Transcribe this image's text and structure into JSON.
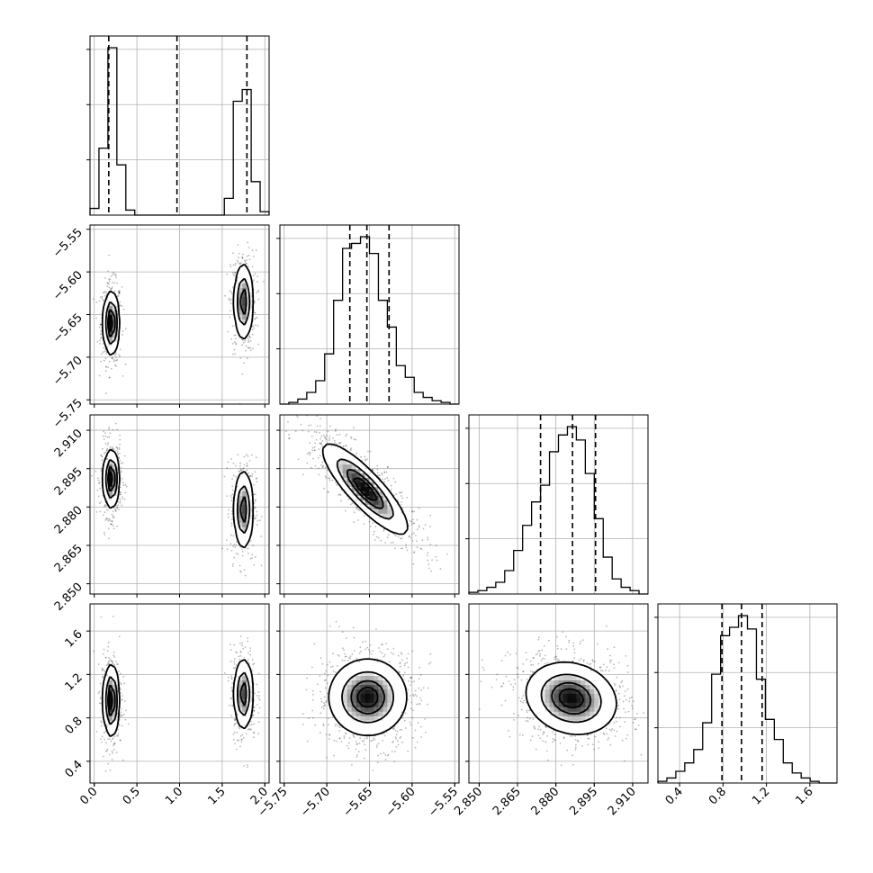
{
  "chart_data": {
    "type": "corner",
    "n_params": 4,
    "quantile_lines": true,
    "grid": true,
    "axes": [
      {
        "index": 0,
        "xlim": [
          -0.05,
          2.05
        ],
        "ticks": [
          "0.0",
          "0.5",
          "1.0",
          "1.5",
          "2.0"
        ],
        "tick_values": [
          0.0,
          0.5,
          1.0,
          1.5,
          2.0
        ],
        "quantiles": [
          0.17,
          0.97,
          1.79
        ]
      },
      {
        "index": 1,
        "xlim": [
          -5.755,
          -5.545
        ],
        "ticks": [
          "−5.75",
          "−5.70",
          "−5.65",
          "−5.60",
          "−5.55"
        ],
        "tick_values": [
          -5.75,
          -5.7,
          -5.65,
          -5.6,
          -5.55
        ],
        "quantiles": [
          -5.673,
          -5.653,
          -5.627
        ]
      },
      {
        "index": 2,
        "xlim": [
          2.846,
          2.916
        ],
        "ticks": [
          "2.850",
          "2.865",
          "2.880",
          "2.895",
          "2.910"
        ],
        "tick_values": [
          2.85,
          2.865,
          2.88,
          2.895,
          2.91
        ],
        "quantiles": [
          2.874,
          2.8865,
          2.8955
        ]
      },
      {
        "index": 3,
        "xlim": [
          0.2,
          1.85
        ],
        "ticks": [
          "0.4",
          "0.8",
          "1.2",
          "1.6"
        ],
        "tick_values": [
          0.4,
          0.8,
          1.2,
          1.6
        ],
        "quantiles": [
          0.79,
          0.97,
          1.16
        ]
      }
    ],
    "marginals": [
      {
        "param": 0,
        "bin_edges": [
          -0.05,
          0.055,
          0.16,
          0.265,
          0.37,
          0.475,
          0.58,
          0.685,
          0.79,
          0.895,
          1.0,
          1.105,
          1.21,
          1.315,
          1.42,
          1.525,
          1.63,
          1.735,
          1.84,
          1.945,
          2.05
        ],
        "counts": [
          0.04,
          0.4,
          1.0,
          0.3,
          0.03,
          0.0,
          0.0,
          0.0,
          0.0,
          0.0,
          0.0,
          0.0,
          0.0,
          0.0,
          0.0,
          0.1,
          0.68,
          0.75,
          0.2,
          0.02
        ]
      },
      {
        "param": 1,
        "bin_edges": [
          -5.755,
          -5.7445,
          -5.734,
          -5.7235,
          -5.713,
          -5.7025,
          -5.692,
          -5.6815,
          -5.671,
          -5.6605,
          -5.65,
          -5.6395,
          -5.629,
          -5.6185,
          -5.608,
          -5.5975,
          -5.587,
          -5.5765,
          -5.566,
          -5.5555,
          -5.545
        ],
        "counts": [
          0.0,
          0.01,
          0.03,
          0.07,
          0.14,
          0.3,
          0.62,
          0.93,
          0.96,
          1.0,
          0.9,
          0.62,
          0.46,
          0.23,
          0.16,
          0.07,
          0.04,
          0.02,
          0.01,
          0.0
        ]
      },
      {
        "param": 2,
        "bin_edges": [
          2.846,
          2.8495,
          2.853,
          2.8565,
          2.86,
          2.8635,
          2.867,
          2.8705,
          2.874,
          2.8775,
          2.881,
          2.8845,
          2.888,
          2.8915,
          2.895,
          2.8985,
          2.902,
          2.9055,
          2.909,
          2.9125,
          2.916
        ],
        "counts": [
          0.01,
          0.02,
          0.04,
          0.07,
          0.14,
          0.26,
          0.41,
          0.55,
          0.65,
          0.85,
          0.95,
          1.0,
          0.92,
          0.72,
          0.45,
          0.22,
          0.09,
          0.04,
          0.02,
          0.0
        ]
      },
      {
        "param": 3,
        "bin_edges": [
          0.2,
          0.2825,
          0.365,
          0.4475,
          0.53,
          0.6125,
          0.695,
          0.7775,
          0.86,
          0.9425,
          1.025,
          1.1075,
          1.19,
          1.2725,
          1.355,
          1.4375,
          1.52,
          1.6025,
          1.685,
          1.7675,
          1.85
        ],
        "counts": [
          0.01,
          0.03,
          0.07,
          0.12,
          0.2,
          0.36,
          0.65,
          0.88,
          0.93,
          1.0,
          0.92,
          0.62,
          0.38,
          0.26,
          0.12,
          0.06,
          0.03,
          0.01,
          0.0,
          0.0
        ]
      }
    ],
    "joint": [
      {
        "x": 0,
        "y": 1,
        "modes": [
          {
            "cx": 0.2,
            "cy": -5.66,
            "sx": 0.045,
            "sy": 0.018,
            "rho": 0.0,
            "w": 0.55
          },
          {
            "cx": 1.75,
            "cy": -5.635,
            "sx": 0.055,
            "sy": 0.022,
            "rho": 0.0,
            "w": 0.45
          }
        ]
      },
      {
        "x": 0,
        "y": 2,
        "modes": [
          {
            "cx": 0.2,
            "cy": 2.891,
            "sx": 0.045,
            "sy": 0.0055,
            "rho": 0.0,
            "w": 0.55
          },
          {
            "cx": 1.75,
            "cy": 2.879,
            "sx": 0.055,
            "sy": 0.0075,
            "rho": 0.0,
            "w": 0.45
          }
        ]
      },
      {
        "x": 0,
        "y": 3,
        "modes": [
          {
            "cx": 0.2,
            "cy": 0.96,
            "sx": 0.045,
            "sy": 0.16,
            "rho": 0.0,
            "w": 0.55
          },
          {
            "cx": 1.75,
            "cy": 1.02,
            "sx": 0.055,
            "sy": 0.16,
            "rho": 0.0,
            "w": 0.45
          }
        ]
      },
      {
        "x": 1,
        "y": 2,
        "modes": [
          {
            "cx": -5.655,
            "cy": 2.887,
            "sx": 0.024,
            "sy": 0.0085,
            "rho": -0.85,
            "w": 1.0
          }
        ]
      },
      {
        "x": 1,
        "y": 3,
        "modes": [
          {
            "cx": -5.652,
            "cy": 0.99,
            "sx": 0.022,
            "sy": 0.17,
            "rho": 0.0,
            "w": 1.0
          }
        ]
      },
      {
        "x": 2,
        "y": 3,
        "modes": [
          {
            "cx": 2.886,
            "cy": 0.98,
            "sx": 0.0085,
            "sy": 0.16,
            "rho": -0.15,
            "w": 1.0
          }
        ]
      }
    ]
  }
}
